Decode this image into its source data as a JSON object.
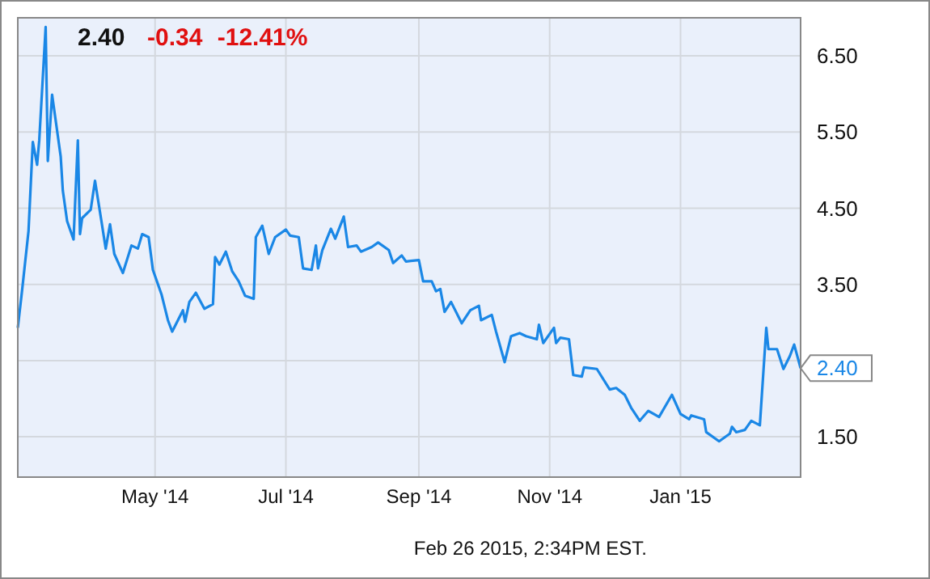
{
  "chart_data": {
    "type": "line",
    "title": "2.40",
    "subtitle": "-0.34 -12.41%",
    "annotations": [
      "Feb 26 2015, 2:34PM EST.",
      {
        "text": "2.40",
        "x": "2015-02-26",
        "y": 2.4
      }
    ],
    "xlim": [
      "2014-02-26",
      "2015-02-26"
    ],
    "xticks": [
      {
        "value": "2014-05-01",
        "label": "May '14"
      },
      {
        "value": "2014-07-01",
        "label": "Jul '14"
      },
      {
        "value": "2014-09-01",
        "label": "Sep '14"
      },
      {
        "value": "2014-11-01",
        "label": "Nov '14"
      },
      {
        "value": "2015-01-01",
        "label": "Jan '15"
      }
    ],
    "ylim": [
      0.97,
      7.0
    ],
    "yticks": [
      {
        "value": 1.5,
        "label": "1.50"
      },
      {
        "value": 2.5,
        "label": null
      },
      {
        "value": 3.5,
        "label": "3.50"
      },
      {
        "value": 4.5,
        "label": "4.50"
      },
      {
        "value": 5.5,
        "label": "5.50"
      },
      {
        "value": 6.5,
        "label": "6.50"
      }
    ],
    "grid": true,
    "marker": "none",
    "line_style": "solid",
    "x": [
      "2014-02-26",
      "2014-02-28",
      "2014-03-03",
      "2014-03-05",
      "2014-03-07",
      "2014-03-08",
      "2014-03-11",
      "2014-03-12",
      "2014-03-14",
      "2014-03-18",
      "2014-03-19",
      "2014-03-21",
      "2014-03-24",
      "2014-03-26",
      "2014-03-27",
      "2014-03-28",
      "2014-04-01",
      "2014-04-03",
      "2014-04-06",
      "2014-04-08",
      "2014-04-10",
      "2014-04-12",
      "2014-04-16",
      "2014-04-20",
      "2014-04-23",
      "2014-04-25",
      "2014-04-28",
      "2014-04-30",
      "2014-05-04",
      "2014-05-07",
      "2014-05-09",
      "2014-05-14",
      "2014-05-15",
      "2014-05-17",
      "2014-05-20",
      "2014-05-24",
      "2014-05-28",
      "2014-05-29",
      "2014-05-31",
      "2014-06-03",
      "2014-06-06",
      "2014-06-09",
      "2014-06-12",
      "2014-06-16",
      "2014-06-17",
      "2014-06-20",
      "2014-06-23",
      "2014-06-26",
      "2014-07-01",
      "2014-07-03",
      "2014-07-07",
      "2014-07-09",
      "2014-07-13",
      "2014-07-15",
      "2014-07-16",
      "2014-07-18",
      "2014-07-22",
      "2014-07-24",
      "2014-07-28",
      "2014-07-30",
      "2014-08-03",
      "2014-08-05",
      "2014-08-10",
      "2014-08-13",
      "2014-08-18",
      "2014-08-20",
      "2014-08-24",
      "2014-08-26",
      "2014-09-01",
      "2014-09-03",
      "2014-09-07",
      "2014-09-09",
      "2014-09-11",
      "2014-09-13",
      "2014-09-16",
      "2014-09-21",
      "2014-09-25",
      "2014-09-29",
      "2014-09-30",
      "2014-10-05",
      "2014-10-07",
      "2014-10-11",
      "2014-10-14",
      "2014-10-18",
      "2014-10-21",
      "2014-10-26",
      "2014-10-27",
      "2014-10-29",
      "2014-11-03",
      "2014-11-04",
      "2014-11-06",
      "2014-11-10",
      "2014-11-12",
      "2014-11-16",
      "2014-11-17",
      "2014-11-23",
      "2014-11-29",
      "2014-12-02",
      "2014-12-06",
      "2014-12-09",
      "2014-12-13",
      "2014-12-17",
      "2014-12-22",
      "2014-12-28",
      "2015-01-01",
      "2015-01-05",
      "2015-01-06",
      "2015-01-12",
      "2015-01-13",
      "2015-01-19",
      "2015-01-24",
      "2015-01-25",
      "2015-01-27",
      "2015-01-31",
      "2015-02-03",
      "2015-02-07",
      "2015-02-10",
      "2015-02-11",
      "2015-02-15",
      "2015-02-18",
      "2015-02-21",
      "2015-02-23",
      "2015-02-26"
    ],
    "series": [
      {
        "color": "#1a87e6",
        "values": [
          2.93,
          3.42,
          4.2,
          5.37,
          5.07,
          5.39,
          6.88,
          5.12,
          5.99,
          5.18,
          4.73,
          4.33,
          4.09,
          5.39,
          4.16,
          4.37,
          4.48,
          4.86,
          4.33,
          3.97,
          4.29,
          3.9,
          3.65,
          4.01,
          3.97,
          4.16,
          4.12,
          3.69,
          3.37,
          3.03,
          2.88,
          3.16,
          3.01,
          3.27,
          3.39,
          3.18,
          3.24,
          3.86,
          3.76,
          3.93,
          3.67,
          3.54,
          3.35,
          3.31,
          4.12,
          4.27,
          3.9,
          4.12,
          4.22,
          4.14,
          4.12,
          3.71,
          3.69,
          4.01,
          3.71,
          3.95,
          4.23,
          4.1,
          4.39,
          3.99,
          4.01,
          3.93,
          3.99,
          4.05,
          3.95,
          3.78,
          3.88,
          3.8,
          3.82,
          3.54,
          3.54,
          3.41,
          3.44,
          3.14,
          3.27,
          2.99,
          3.16,
          3.22,
          3.03,
          3.1,
          2.88,
          2.48,
          2.82,
          2.86,
          2.82,
          2.78,
          2.97,
          2.73,
          2.93,
          2.73,
          2.8,
          2.78,
          2.31,
          2.29,
          2.41,
          2.39,
          2.12,
          2.14,
          2.05,
          1.88,
          1.71,
          1.84,
          1.76,
          2.05,
          1.8,
          1.73,
          1.78,
          1.73,
          1.56,
          1.44,
          1.54,
          1.63,
          1.56,
          1.59,
          1.71,
          1.65,
          2.93,
          2.65,
          2.65,
          2.39,
          2.56,
          2.71,
          2.4
        ]
      }
    ]
  }
}
